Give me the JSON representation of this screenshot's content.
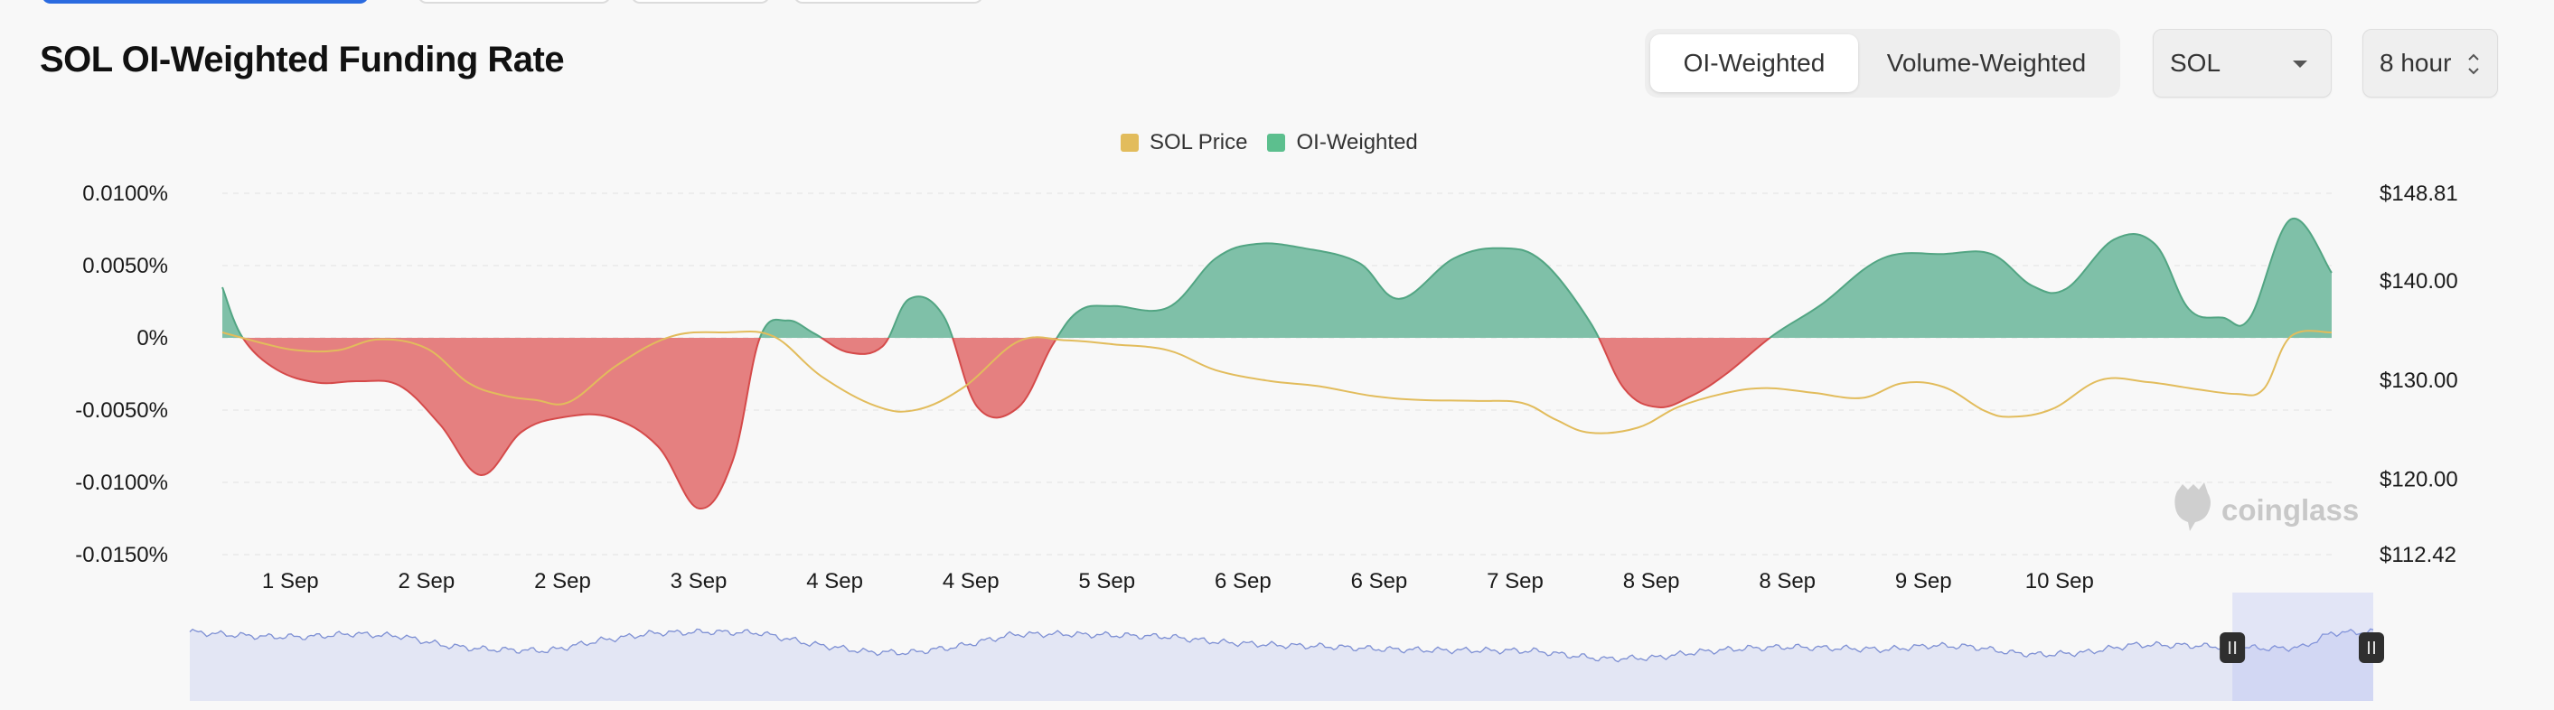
{
  "title": "SOL OI-Weighted Funding Rate",
  "controls": {
    "weighting_options": [
      "OI-Weighted",
      "Volume-Weighted"
    ],
    "selected_weighting": "OI-Weighted",
    "coin": "SOL",
    "interval": "8 hour"
  },
  "watermark": "coinglass",
  "colors": {
    "positive_fill": "#7fc0a8",
    "positive_line": "#52a583",
    "negative_fill": "#e58080",
    "negative_line": "#d54a4a",
    "price_line": "#e2bc5c",
    "legend_price": "#e2bc5c",
    "legend_oi": "#5cbf8e",
    "navigator_fill": "#e3e6f4",
    "navigator_line": "#7e90d4"
  },
  "chart_data": {
    "type": "area",
    "legend": [
      "SOL Price",
      "OI-Weighted"
    ],
    "categories": [
      "1 Sep",
      "2 Sep",
      "2 Sep",
      "3 Sep",
      "4 Sep",
      "4 Sep",
      "5 Sep",
      "6 Sep",
      "6 Sep",
      "7 Sep",
      "8 Sep",
      "8 Sep",
      "9 Sep",
      "10 Sep"
    ],
    "y_left": {
      "ticks": [
        "0.0100%",
        "0.0050%",
        "0%",
        "-0.0050%",
        "-0.0100%",
        "-0.0150%"
      ],
      "tick_values": [
        0.01,
        0.005,
        0,
        -0.005,
        -0.01,
        -0.015
      ],
      "range": [
        -0.015,
        0.01
      ]
    },
    "y_right": {
      "ticks": [
        "$148.81",
        "$140.00",
        "$130.00",
        "$120.00",
        "$112.42"
      ],
      "tick_values": [
        148.81,
        140,
        130,
        120,
        112.42
      ],
      "range": [
        112.42,
        148.81
      ]
    },
    "x_range": [
      0,
      15.5
    ],
    "series": [
      {
        "name": "OI-Weighted",
        "unit": "%",
        "x": [
          0,
          0.15,
          0.4,
          0.7,
          1.0,
          1.3,
          1.6,
          1.9,
          2.2,
          2.5,
          2.85,
          3.2,
          3.5,
          3.75,
          3.95,
          4.15,
          4.35,
          4.6,
          4.85,
          5.05,
          5.3,
          5.55,
          5.85,
          6.1,
          6.3,
          6.55,
          6.95,
          7.3,
          7.6,
          7.95,
          8.35,
          8.65,
          9.05,
          9.4,
          9.7,
          10.05,
          10.3,
          10.55,
          10.8,
          11.05,
          11.4,
          11.75,
          12.2,
          12.65,
          13.0,
          13.3,
          13.55,
          13.9,
          14.2,
          14.45,
          14.7,
          14.9,
          15.2,
          15.5
        ],
        "values": [
          0.0035,
          0.0,
          -0.0022,
          -0.0031,
          -0.003,
          -0.0033,
          -0.006,
          -0.0095,
          -0.0065,
          -0.0055,
          -0.0055,
          -0.0075,
          -0.0118,
          -0.0085,
          0.0,
          0.0012,
          0.0003,
          -0.001,
          -0.0006,
          0.0027,
          0.0015,
          -0.0048,
          -0.0048,
          -0.0005,
          0.0019,
          0.0022,
          0.0021,
          0.0055,
          0.0065,
          0.0062,
          0.0052,
          0.0027,
          0.0055,
          0.0062,
          0.0053,
          0.0011,
          -0.0035,
          -0.0048,
          -0.004,
          -0.0025,
          0.0002,
          0.0023,
          0.0055,
          0.0058,
          0.0058,
          0.0036,
          0.0034,
          0.0068,
          0.0065,
          0.002,
          0.0014,
          0.0014,
          0.0082,
          0.0045
        ]
      },
      {
        "name": "SOL Price",
        "unit": "$",
        "x": [
          0,
          0.3,
          0.55,
          0.85,
          1.15,
          1.5,
          1.8,
          2.05,
          2.3,
          2.55,
          2.9,
          3.3,
          3.7,
          4.05,
          4.4,
          4.8,
          5.1,
          5.45,
          5.85,
          6.2,
          6.55,
          6.95,
          7.3,
          7.7,
          8.05,
          8.45,
          8.8,
          9.2,
          9.55,
          9.8,
          10.05,
          10.4,
          10.7,
          11.05,
          11.35,
          11.7,
          12.05,
          12.35,
          12.65,
          12.95,
          13.15,
          13.45,
          13.8,
          14.15,
          14.5,
          14.8,
          15.0,
          15.2,
          15.5
        ],
        "values": [
          134.8,
          133.7,
          133.0,
          133.0,
          134.1,
          133.2,
          129.8,
          128.5,
          128.0,
          127.8,
          131.5,
          134.4,
          134.8,
          134.4,
          130.4,
          127.4,
          127.0,
          129.3,
          133.9,
          134.0,
          133.6,
          133.0,
          131.0,
          129.9,
          129.4,
          128.4,
          128.0,
          127.9,
          127.7,
          126.0,
          124.7,
          125.2,
          127.3,
          128.7,
          129.2,
          128.7,
          128.2,
          129.7,
          129.3,
          126.9,
          126.3,
          127.1,
          130.0,
          129.8,
          129.1,
          128.6,
          129.1,
          134.4,
          134.8
        ]
      }
    ]
  }
}
